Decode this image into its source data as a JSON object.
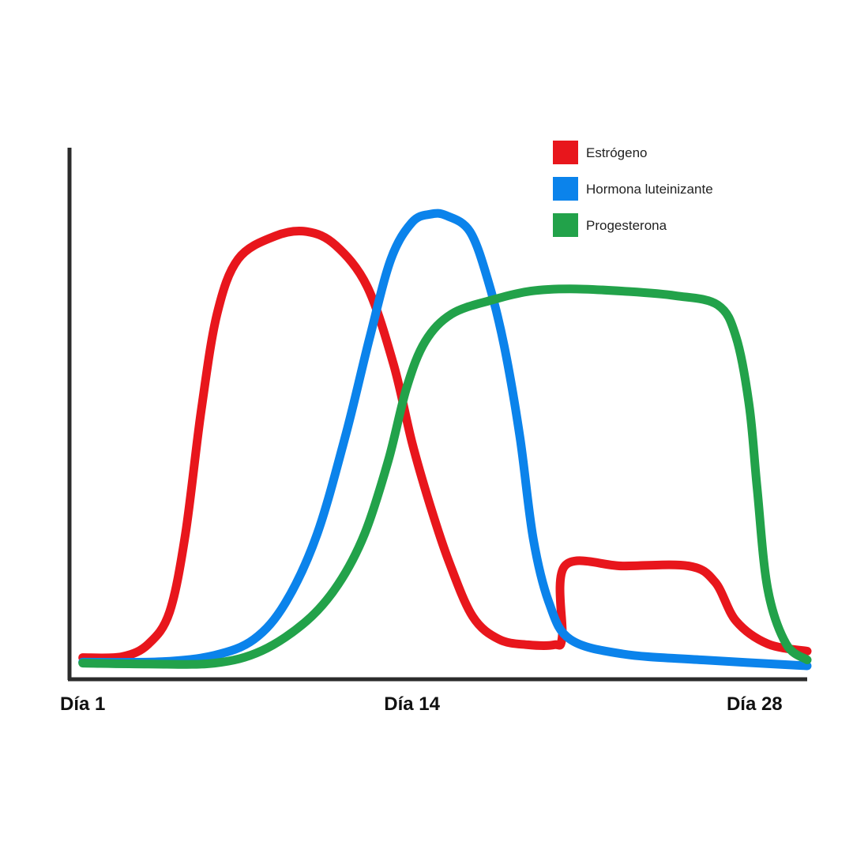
{
  "chart_data": {
    "type": "line",
    "title": "",
    "xlabel": "",
    "ylabel": "",
    "xlim": [
      1,
      29
    ],
    "ylim": [
      0,
      100
    ],
    "grid": false,
    "legend_position": "top-right",
    "x_ticks": [
      {
        "value": 1.5,
        "label": "Día 1"
      },
      {
        "value": 14,
        "label": "Día 14"
      },
      {
        "value": 27,
        "label": "Día 28"
      }
    ],
    "series": [
      {
        "name": "Estrógeno",
        "color": "#e8161c",
        "points": [
          [
            1.5,
            3
          ],
          [
            3.0,
            3.2
          ],
          [
            4.0,
            6
          ],
          [
            4.8,
            13
          ],
          [
            5.4,
            30
          ],
          [
            6.0,
            57
          ],
          [
            6.6,
            78
          ],
          [
            7.4,
            90
          ],
          [
            8.8,
            95
          ],
          [
            10.0,
            96
          ],
          [
            11.1,
            93
          ],
          [
            12.3,
            84
          ],
          [
            13.3,
            67
          ],
          [
            14.0,
            50
          ],
          [
            14.7,
            36
          ],
          [
            15.4,
            24
          ],
          [
            16.3,
            12
          ],
          [
            17.3,
            7
          ],
          [
            18.4,
            5.8
          ],
          [
            19.4,
            5.8
          ],
          [
            19.7,
            7.5
          ],
          [
            19.8,
            23
          ],
          [
            22.0,
            23
          ],
          [
            24.5,
            23
          ],
          [
            25.5,
            19.5
          ],
          [
            26.3,
            11
          ],
          [
            27.5,
            6
          ],
          [
            29.0,
            4.4
          ]
        ]
      },
      {
        "name": "Hormona luteinizante",
        "color": "#0b83eb",
        "points": [
          [
            1.5,
            2
          ],
          [
            4.5,
            2.1
          ],
          [
            6.5,
            3.5
          ],
          [
            8.0,
            7
          ],
          [
            9.2,
            15
          ],
          [
            10.4,
            30
          ],
          [
            11.5,
            52
          ],
          [
            12.4,
            73
          ],
          [
            13.2,
            90
          ],
          [
            14.0,
            98
          ],
          [
            14.7,
            99.8
          ],
          [
            15.3,
            99.5
          ],
          [
            16.2,
            96
          ],
          [
            16.9,
            85
          ],
          [
            17.5,
            71
          ],
          [
            18.1,
            51
          ],
          [
            18.6,
            29
          ],
          [
            19.2,
            15
          ],
          [
            20.0,
            7
          ],
          [
            22.0,
            3.8
          ],
          [
            25.0,
            2.5
          ],
          [
            29.0,
            1.2
          ]
        ]
      },
      {
        "name": "Progesterona",
        "color": "#22a24a",
        "points": [
          [
            1.5,
            1.8
          ],
          [
            4.0,
            1.6
          ],
          [
            6.5,
            1.8
          ],
          [
            8.3,
            4.5
          ],
          [
            10.0,
            11
          ],
          [
            11.2,
            19
          ],
          [
            12.2,
            30
          ],
          [
            13.1,
            46
          ],
          [
            13.8,
            62
          ],
          [
            14.5,
            72
          ],
          [
            15.5,
            78
          ],
          [
            17.0,
            81
          ],
          [
            18.5,
            83
          ],
          [
            20.0,
            83.5
          ],
          [
            22.0,
            83
          ],
          [
            24.0,
            82
          ],
          [
            25.6,
            80
          ],
          [
            26.3,
            73
          ],
          [
            26.8,
            58
          ],
          [
            27.1,
            40
          ],
          [
            27.5,
            18
          ],
          [
            28.2,
            6
          ],
          [
            29.0,
            2.5
          ]
        ]
      }
    ]
  }
}
